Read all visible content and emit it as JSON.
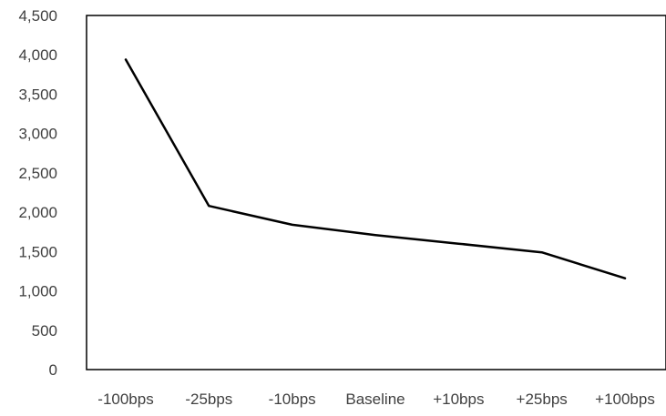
{
  "chart_data": {
    "type": "line",
    "title": "",
    "xlabel": "",
    "ylabel": "",
    "categories": [
      "-100bps",
      "-25bps",
      "-10bps",
      "Baseline",
      "+10bps",
      "+25bps",
      "+100bps"
    ],
    "series": [
      {
        "values": [
          3940,
          2080,
          1840,
          1710,
          1600,
          1490,
          1160
        ]
      }
    ],
    "ylim": [
      0,
      4500
    ],
    "yticks": [
      0,
      500,
      1000,
      1500,
      2000,
      2500,
      3000,
      3500,
      4000,
      4500
    ],
    "ytick_labels": [
      "0",
      "500",
      "1,000",
      "1,500",
      "2,000",
      "2,500",
      "3,000",
      "3,500",
      "4,000",
      "4,500"
    ],
    "grid": false,
    "legend": "none",
    "colors": {
      "line": "#000000",
      "axis": "#000000",
      "text": "#404040",
      "background": "#ffffff"
    }
  }
}
